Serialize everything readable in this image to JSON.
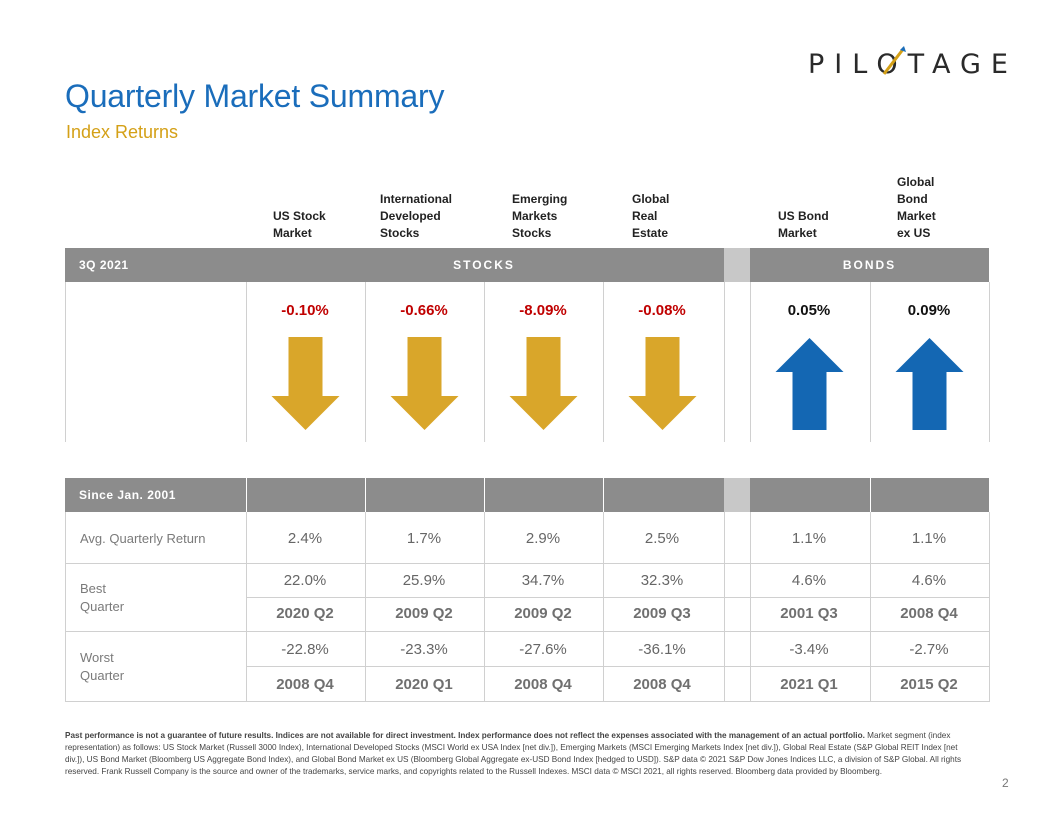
{
  "logo": {
    "text": "PILOTAGE"
  },
  "title": "Quarterly Market Summary",
  "subtitle": "Index Returns",
  "columns": [
    {
      "header": "US Stock\nMarket",
      "q_return": "-0.10%",
      "direction": "down",
      "avg": "2.4%",
      "best": "22.0%",
      "best_q": "2020 Q2",
      "worst": "-22.8%",
      "worst_q": "2008 Q4"
    },
    {
      "header": "International\nDeveloped\nStocks",
      "q_return": "-0.66%",
      "direction": "down",
      "avg": "1.7%",
      "best": "25.9%",
      "best_q": "2009 Q2",
      "worst": "-23.3%",
      "worst_q": "2020 Q1"
    },
    {
      "header": "Emerging\nMarkets\nStocks",
      "q_return": "-8.09%",
      "direction": "down",
      "avg": "2.9%",
      "best": "34.7%",
      "best_q": "2009 Q2",
      "worst": "-27.6%",
      "worst_q": "2008 Q4"
    },
    {
      "header": "Global\nReal\nEstate",
      "q_return": "-0.08%",
      "direction": "down",
      "avg": "2.5%",
      "best": "32.3%",
      "best_q": "2009 Q3",
      "worst": "-36.1%",
      "worst_q": "2008 Q4"
    },
    {
      "header": "US Bond\nMarket",
      "q_return": "0.05%",
      "direction": "up",
      "avg": "1.1%",
      "best": "4.6%",
      "best_q": "2001 Q3",
      "worst": "-3.4%",
      "worst_q": "2021 Q1"
    },
    {
      "header": "Global\nBond\nMarket\nex US",
      "q_return": "0.09%",
      "direction": "up",
      "avg": "1.1%",
      "best": "4.6%",
      "best_q": "2008 Q4",
      "worst": "-2.7%",
      "worst_q": "2015 Q2"
    }
  ],
  "band1": {
    "period": "3Q 2021",
    "stocks": "STOCKS",
    "bonds": "BONDS"
  },
  "band2": {
    "period": "Since Jan. 2001"
  },
  "rows": {
    "avg": "Avg. Quarterly Return",
    "best": "Best\nQuarter",
    "worst": "Worst\nQuarter"
  },
  "colors": {
    "down_arrow": "#d9a62a",
    "up_arrow": "#1467b3",
    "negative": "#c00000",
    "band": "#8c8c8c"
  },
  "footnote_bold": "Past performance is not a guarantee of future results. Indices are not available for direct investment. Index performance does not reflect the expenses associated with the management of an actual portfolio.",
  "footnote_rest": "Market segment (index representation) as follows: US Stock Market (Russell 3000 Index), International Developed Stocks (MSCI World ex USA Index [net div.]), Emerging Markets (MSCI Emerging Markets Index [net div.]), Global Real Estate (S&P Global REIT Index [net div.]), US Bond Market (Bloomberg US Aggregate Bond Index), and Global Bond Market ex US (Bloomberg Global Aggregate ex-USD Bond Index [hedged to USD]). S&P data © 2021 S&P Dow Jones Indices LLC, a division of S&P Global. All rights reserved. Frank Russell Company is the source and owner of the trademarks, service marks, and copyrights related to the Russell Indexes. MSCI data © MSCI 2021, all rights reserved. Bloomberg data provided by Bloomberg.",
  "page_number": "2"
}
